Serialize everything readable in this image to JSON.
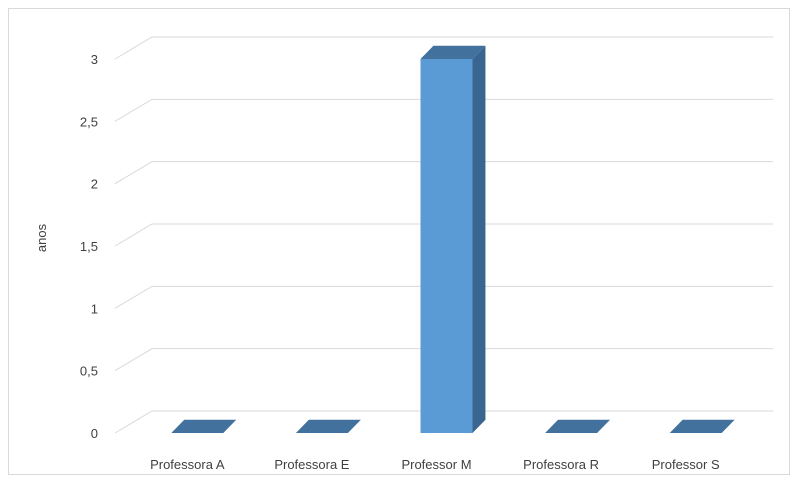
{
  "chart_data": {
    "type": "bar",
    "style": "3d-column",
    "categories": [
      "Professora A",
      "Professora E",
      "Professor M",
      "Professora R",
      "Professor S"
    ],
    "values": [
      0,
      0,
      3,
      0,
      0
    ],
    "xlabel": "",
    "ylabel": "anos",
    "ylim": [
      0,
      3
    ],
    "yticks": [
      "0",
      "0,5",
      "1",
      "1,5",
      "2",
      "2,5",
      "3"
    ],
    "ytick_values": [
      0,
      0.5,
      1,
      1.5,
      2,
      2.5,
      3
    ],
    "grid": true,
    "legend": "none",
    "colors": {
      "bar_front": "#5b9bd5",
      "bar_top": "#41719c",
      "bar_side": "#3a6591",
      "grid": "#d9d9d9",
      "text": "#404040",
      "frame": "#d9d9d9"
    }
  }
}
